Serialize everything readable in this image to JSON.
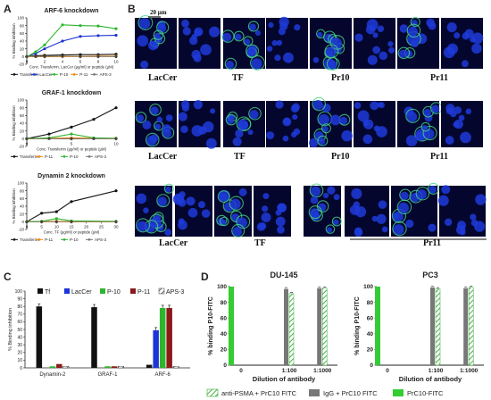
{
  "panels": {
    "A": "A",
    "B": "B",
    "C": "C",
    "D": "D"
  },
  "panel_b": {
    "scale_bar": "20 µm",
    "row1_labels": [
      "LacCer",
      "TF",
      "Pr10",
      "Pr11"
    ],
    "row2_labels": [
      "LacCer",
      "TF",
      "Pr10",
      "Pr11"
    ],
    "row3_labels": [
      "LacCer",
      "TF",
      "Pr11"
    ]
  },
  "chart_data": [
    {
      "id": "A1",
      "type": "line",
      "title": "ARF-6 knockdown",
      "xlabel": "Conc. Transferrin, LacCer (µg/ml) or peptide (µM)",
      "ylabel": "% Binding inhibition",
      "xlim": [
        0,
        10
      ],
      "ylim": [
        -20,
        100
      ],
      "xticks": [
        0,
        2,
        4,
        6,
        8,
        10
      ],
      "yticks": [
        -20,
        0,
        20,
        40,
        60,
        80,
        100
      ],
      "x": [
        0,
        1,
        2,
        4,
        6,
        8,
        10
      ],
      "series": [
        {
          "name": "Transferrin",
          "color": "#111111",
          "values": [
            0,
            2,
            3,
            4,
            5,
            5,
            6
          ]
        },
        {
          "name": "LacCer",
          "color": "#1d35d6",
          "values": [
            0,
            8,
            20,
            40,
            52,
            54,
            55
          ]
        },
        {
          "name": "P-10",
          "color": "#2db52d",
          "values": [
            0,
            12,
            30,
            82,
            80,
            79,
            72
          ]
        },
        {
          "name": "P-11",
          "color": "#ee8a10",
          "values": [
            0,
            0,
            0,
            0,
            0,
            1,
            1
          ]
        },
        {
          "name": "APS-3",
          "color": "#777777",
          "values": [
            0,
            0,
            0,
            1,
            0,
            0,
            0
          ]
        }
      ]
    },
    {
      "id": "A2",
      "type": "line",
      "title": "GRAF-1 knockdown",
      "xlabel": "Conc. Transferrin (µg/ml) or peptide (µM)",
      "ylabel": "% Binding inhibition",
      "xlim": [
        0,
        10
      ],
      "ylim": [
        -20,
        100
      ],
      "xticks": [
        0,
        5,
        10
      ],
      "yticks": [
        -20,
        0,
        20,
        40,
        60,
        80,
        100
      ],
      "x": [
        0,
        2.5,
        5,
        7.5,
        10
      ],
      "series": [
        {
          "name": "Transferrin",
          "color": "#111111",
          "values": [
            0,
            12,
            30,
            50,
            80
          ]
        },
        {
          "name": "P-11",
          "color": "#ee8a10",
          "values": [
            0,
            1,
            2,
            1,
            1
          ]
        },
        {
          "name": "P-10",
          "color": "#2db52d",
          "values": [
            0,
            2,
            12,
            2,
            1
          ]
        },
        {
          "name": "APS-3",
          "color": "#777777",
          "values": [
            0,
            0,
            0,
            0,
            0
          ]
        }
      ]
    },
    {
      "id": "A3",
      "type": "line",
      "title": "Dynamin 2 knockdown",
      "xlabel": "Conc. TF (µg/ml) or peptide (µM)",
      "ylabel": "% Binding inhibition",
      "xlim": [
        0,
        30
      ],
      "ylim": [
        -20,
        100
      ],
      "xticks": [
        0,
        5,
        10,
        15,
        20,
        25,
        30
      ],
      "yticks": [
        -20,
        0,
        20,
        40,
        60,
        80,
        100
      ],
      "x": [
        0,
        5,
        10,
        15,
        30
      ],
      "series": [
        {
          "name": "Transferrin",
          "color": "#111111",
          "values": [
            0,
            22,
            26,
            52,
            80
          ]
        },
        {
          "name": "P-11",
          "color": "#ee8a10",
          "values": [
            0,
            0,
            1,
            0,
            0
          ]
        },
        {
          "name": "P-10",
          "color": "#2db52d",
          "values": [
            0,
            1,
            8,
            2,
            1
          ]
        },
        {
          "name": "APS-3",
          "color": "#777777",
          "values": [
            0,
            0,
            0,
            0,
            0
          ]
        }
      ]
    },
    {
      "id": "C",
      "type": "bar",
      "ylabel": "% Binding inhibition",
      "ylim": [
        0,
        100
      ],
      "yticks": [
        0,
        10,
        20,
        30,
        40,
        50,
        60,
        70,
        80,
        90,
        100
      ],
      "categories": [
        "Dynamin-2",
        "GRAF-1",
        "ARF-6"
      ],
      "series": [
        {
          "name": "Tf",
          "color": "#111111",
          "values": [
            80,
            79,
            4
          ]
        },
        {
          "name": "LacCer",
          "color": "#1d35d6",
          "values": [
            0,
            0,
            49
          ]
        },
        {
          "name": "P-10",
          "color": "#2db52d",
          "values": [
            2,
            2,
            78
          ]
        },
        {
          "name": "P-11",
          "color": "#8b1a1a",
          "values": [
            5,
            2,
            78
          ]
        },
        {
          "name": "APS-3",
          "color": "hatch",
          "values": [
            2,
            2,
            2
          ]
        }
      ]
    },
    {
      "id": "D1",
      "type": "bar",
      "title": "DU-145",
      "xlabel": "Dilution of antibody",
      "ylabel": "% binding P10-FITC",
      "ylim": [
        0,
        100
      ],
      "yticks": [
        0,
        20,
        40,
        60,
        80,
        100
      ],
      "categories": [
        "0",
        "1:100",
        "1:1000"
      ],
      "series": [
        {
          "name": "PrC10-FITC",
          "color": "#33cc33",
          "values": [
            100,
            0,
            0
          ]
        },
        {
          "name": "IgG + PrC10 FITC",
          "color": "#777777",
          "values": [
            0,
            97,
            98
          ]
        },
        {
          "name": "anti-PSMA + PrC10 FITC",
          "color": "hatch-green",
          "values": [
            0,
            91,
            98
          ]
        }
      ]
    },
    {
      "id": "D2",
      "type": "bar",
      "title": "PC3",
      "xlabel": "Dilution of antibody",
      "ylabel": "% binding P10-FITC",
      "ylim": [
        0,
        100
      ],
      "yticks": [
        0,
        20,
        40,
        60,
        80,
        100
      ],
      "categories": [
        "0",
        "1:100",
        "1:1000"
      ],
      "series": [
        {
          "name": "PrC10-FITC",
          "color": "#33cc33",
          "values": [
            100,
            0,
            0
          ]
        },
        {
          "name": "IgG + PrC10 FITC",
          "color": "#777777",
          "values": [
            0,
            99,
            98
          ]
        },
        {
          "name": "anti-PSMA + PrC10 FITC",
          "color": "hatch-green",
          "values": [
            0,
            97,
            99
          ]
        }
      ]
    }
  ],
  "legend_d": [
    "anti-PSMA + PrC10 FITC",
    "IgG + PrC10 FITC",
    "PrC10-FITC"
  ]
}
